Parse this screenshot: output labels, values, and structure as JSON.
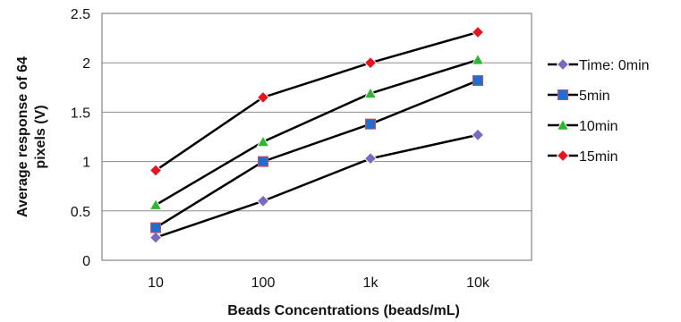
{
  "chart_data": {
    "type": "line",
    "title": "",
    "xlabel": "Beads Concentrations (beads/mL)",
    "ylabel_lines": [
      "Average response of 64",
      "pixels (V)"
    ],
    "categories": [
      "10",
      "100",
      "1k",
      "10k"
    ],
    "ylim": [
      0,
      2.5
    ],
    "yticks": [
      "0",
      "0.5",
      "1",
      "1.5",
      "2",
      "2.5"
    ],
    "grid": true,
    "legend_position": "right",
    "series": [
      {
        "name": "Time: 0min",
        "values": [
          0.23,
          0.6,
          1.03,
          1.27
        ],
        "color": "#7b68c0",
        "marker": "diamond"
      },
      {
        "name": "5min",
        "values": [
          0.33,
          1.0,
          1.38,
          1.82
        ],
        "color": "#1f6fd1",
        "marker": "square"
      },
      {
        "name": "10min",
        "values": [
          0.56,
          1.2,
          1.69,
          2.03
        ],
        "color": "#2fb52f",
        "marker": "triangle"
      },
      {
        "name": "15min",
        "values": [
          0.91,
          1.65,
          2.0,
          2.31
        ],
        "color": "#e8141b",
        "marker": "diamond"
      }
    ]
  }
}
